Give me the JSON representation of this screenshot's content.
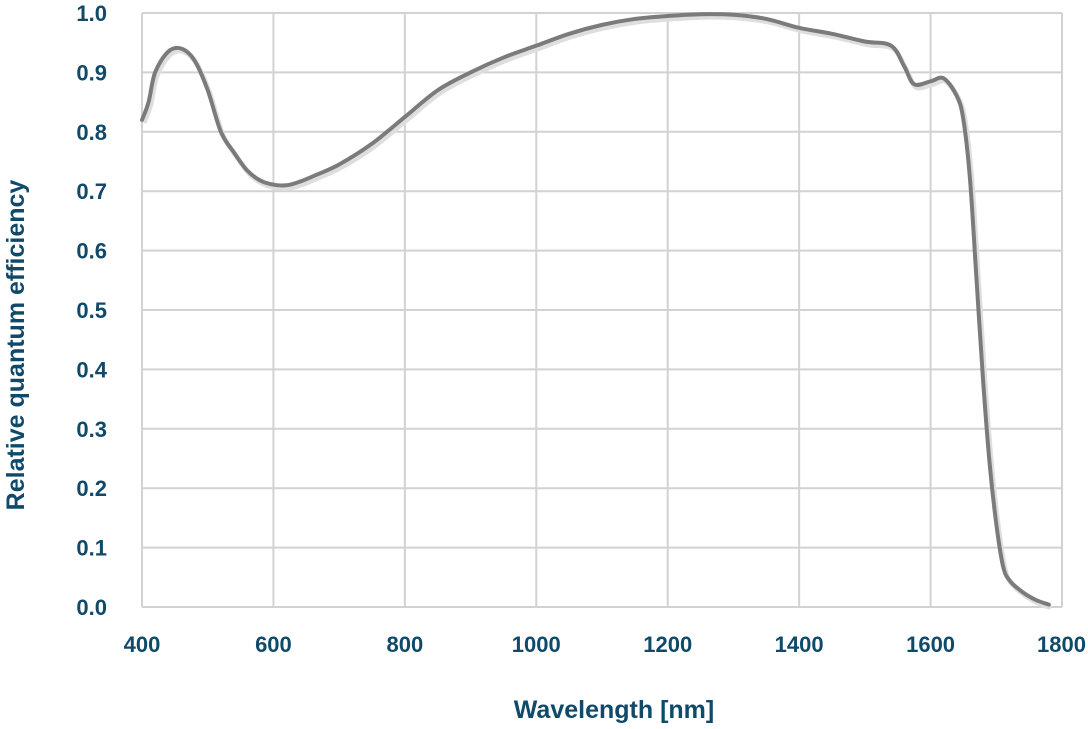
{
  "colors": {
    "text": "#0f4a6b",
    "grid": "#d2d2d2",
    "line": "#7b7b7b",
    "line_shadow": "#dedede"
  },
  "chart_data": {
    "type": "line",
    "title": "",
    "xlabel": "Wavelength [nm]",
    "ylabel": "Relative quantum efficiency",
    "xlim": [
      400,
      1800
    ],
    "ylim": [
      0.0,
      1.0
    ],
    "grid": true,
    "x_ticks": [
      400,
      600,
      800,
      1000,
      1200,
      1400,
      1600,
      1800
    ],
    "x_tick_labels": [
      "400",
      "600",
      "800",
      "1000",
      "1200",
      "1400",
      "1600",
      "1800"
    ],
    "y_ticks": [
      0.0,
      0.1,
      0.2,
      0.3,
      0.4,
      0.5,
      0.6,
      0.7,
      0.8,
      0.9,
      1.0
    ],
    "y_tick_labels": [
      "0.0",
      "0.1",
      "0.2",
      "0.3",
      "0.4",
      "0.5",
      "0.6",
      "0.7",
      "0.8",
      "0.9",
      "1.0"
    ],
    "series": [
      {
        "x": [
          400,
          410,
          420,
          440,
          460,
          480,
          500,
          520,
          540,
          560,
          580,
          600,
          620,
          640,
          660,
          700,
          750,
          800,
          850,
          900,
          950,
          1000,
          1050,
          1100,
          1150,
          1200,
          1250,
          1300,
          1350,
          1400,
          1450,
          1500,
          1540,
          1560,
          1575,
          1600,
          1620,
          1640,
          1650,
          1660,
          1670,
          1680,
          1690,
          1700,
          1710,
          1720,
          1740,
          1760,
          1780
        ],
        "y": [
          0.82,
          0.85,
          0.9,
          0.935,
          0.94,
          0.92,
          0.87,
          0.8,
          0.765,
          0.735,
          0.718,
          0.711,
          0.71,
          0.716,
          0.725,
          0.745,
          0.78,
          0.825,
          0.87,
          0.9,
          0.925,
          0.945,
          0.965,
          0.98,
          0.99,
          0.995,
          0.998,
          0.997,
          0.99,
          0.975,
          0.965,
          0.952,
          0.945,
          0.91,
          0.88,
          0.885,
          0.89,
          0.86,
          0.82,
          0.72,
          0.55,
          0.38,
          0.24,
          0.14,
          0.07,
          0.045,
          0.025,
          0.012,
          0.004
        ]
      }
    ]
  }
}
